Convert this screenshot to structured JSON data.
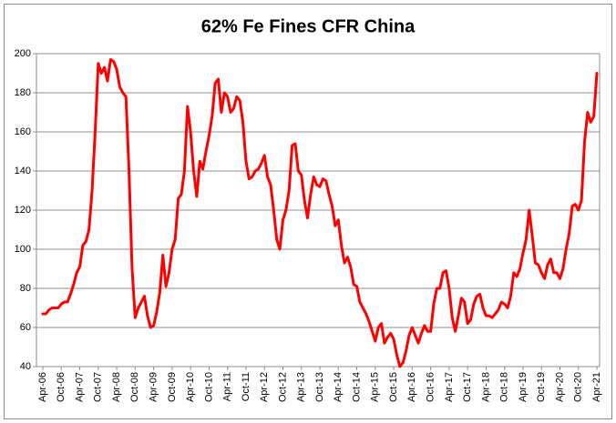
{
  "chart_data": {
    "type": "line",
    "title": "62% Fe Fines CFR China",
    "categories": [
      "Apr-06",
      null,
      null,
      null,
      null,
      null,
      "Oct-06",
      null,
      null,
      null,
      null,
      null,
      "Apr-07",
      null,
      null,
      null,
      null,
      null,
      "Oct-07",
      null,
      null,
      null,
      null,
      null,
      "Apr-08",
      null,
      null,
      null,
      null,
      null,
      "Oct-08",
      null,
      null,
      null,
      null,
      null,
      "Apr-09",
      null,
      null,
      null,
      null,
      null,
      "Oct-09",
      null,
      null,
      null,
      null,
      null,
      "Apr-10",
      null,
      null,
      null,
      null,
      null,
      "Oct-10",
      null,
      null,
      null,
      null,
      null,
      "Apr-11",
      null,
      null,
      null,
      null,
      null,
      "Oct-11",
      null,
      null,
      null,
      null,
      null,
      "Apr-12",
      null,
      null,
      null,
      null,
      null,
      "Oct-12",
      null,
      null,
      null,
      null,
      null,
      "Apr-13",
      null,
      null,
      null,
      null,
      null,
      "Oct-13",
      null,
      null,
      null,
      null,
      null,
      "Apr-14",
      null,
      null,
      null,
      null,
      null,
      "Oct-14",
      null,
      null,
      null,
      null,
      null,
      "Apr-15",
      null,
      null,
      null,
      null,
      null,
      "Oct-15",
      null,
      null,
      null,
      null,
      null,
      "Apr-16",
      null,
      null,
      null,
      null,
      null,
      "Oct-16",
      null,
      null,
      null,
      null,
      null,
      "Apr-17",
      null,
      null,
      null,
      null,
      null,
      "Oct-17",
      null,
      null,
      null,
      null,
      null,
      "Apr-18",
      null,
      null,
      null,
      null,
      null,
      "Oct-18",
      null,
      null,
      null,
      null,
      null,
      "Apr-19",
      null,
      null,
      null,
      null,
      null,
      "Oct-19",
      null,
      null,
      null,
      null,
      null,
      "Apr-20",
      null,
      null,
      null,
      null,
      null,
      "Oct-20",
      null,
      null,
      null,
      null,
      null,
      "Apr-21"
    ],
    "values": [
      67,
      67,
      69,
      70,
      70,
      70,
      72,
      73,
      73,
      77,
      82,
      88,
      91,
      102,
      104,
      110,
      130,
      160,
      195,
      190,
      193,
      186,
      197,
      196,
      192,
      183,
      180,
      178,
      140,
      90,
      65,
      70,
      73,
      76,
      66,
      60,
      61,
      68,
      78,
      97,
      81,
      88,
      100,
      105,
      126,
      128,
      140,
      173,
      160,
      140,
      127,
      145,
      141,
      150,
      158,
      168,
      185,
      187,
      170,
      180,
      178,
      170,
      172,
      178,
      176,
      165,
      145,
      136,
      137,
      140,
      141,
      144,
      148,
      137,
      133,
      120,
      105,
      100,
      115,
      120,
      130,
      153,
      154,
      140,
      138,
      125,
      116,
      128,
      137,
      133,
      132,
      136,
      135,
      128,
      122,
      112,
      115,
      102,
      93,
      96,
      91,
      82,
      81,
      73,
      70,
      67,
      63,
      58,
      53,
      60,
      62,
      52,
      55,
      57,
      54,
      46,
      40,
      42,
      48,
      56,
      60,
      56,
      52,
      57,
      61,
      58,
      58,
      72,
      80,
      80,
      88,
      89,
      80,
      65,
      58,
      66,
      75,
      73,
      62,
      64,
      72,
      76,
      77,
      70,
      66,
      66,
      65,
      67,
      69,
      73,
      72,
      70,
      76,
      88,
      86,
      90,
      98,
      105,
      120,
      107,
      93,
      92,
      88,
      85,
      92,
      95,
      88,
      88,
      85,
      90,
      100,
      108,
      122,
      123,
      120,
      125,
      155,
      170,
      165,
      168,
      190
    ],
    "color": "#ff0000",
    "ylim": [
      40,
      200
    ],
    "yticks": [
      40,
      60,
      80,
      100,
      120,
      140,
      160,
      180,
      200
    ],
    "grid": true
  }
}
